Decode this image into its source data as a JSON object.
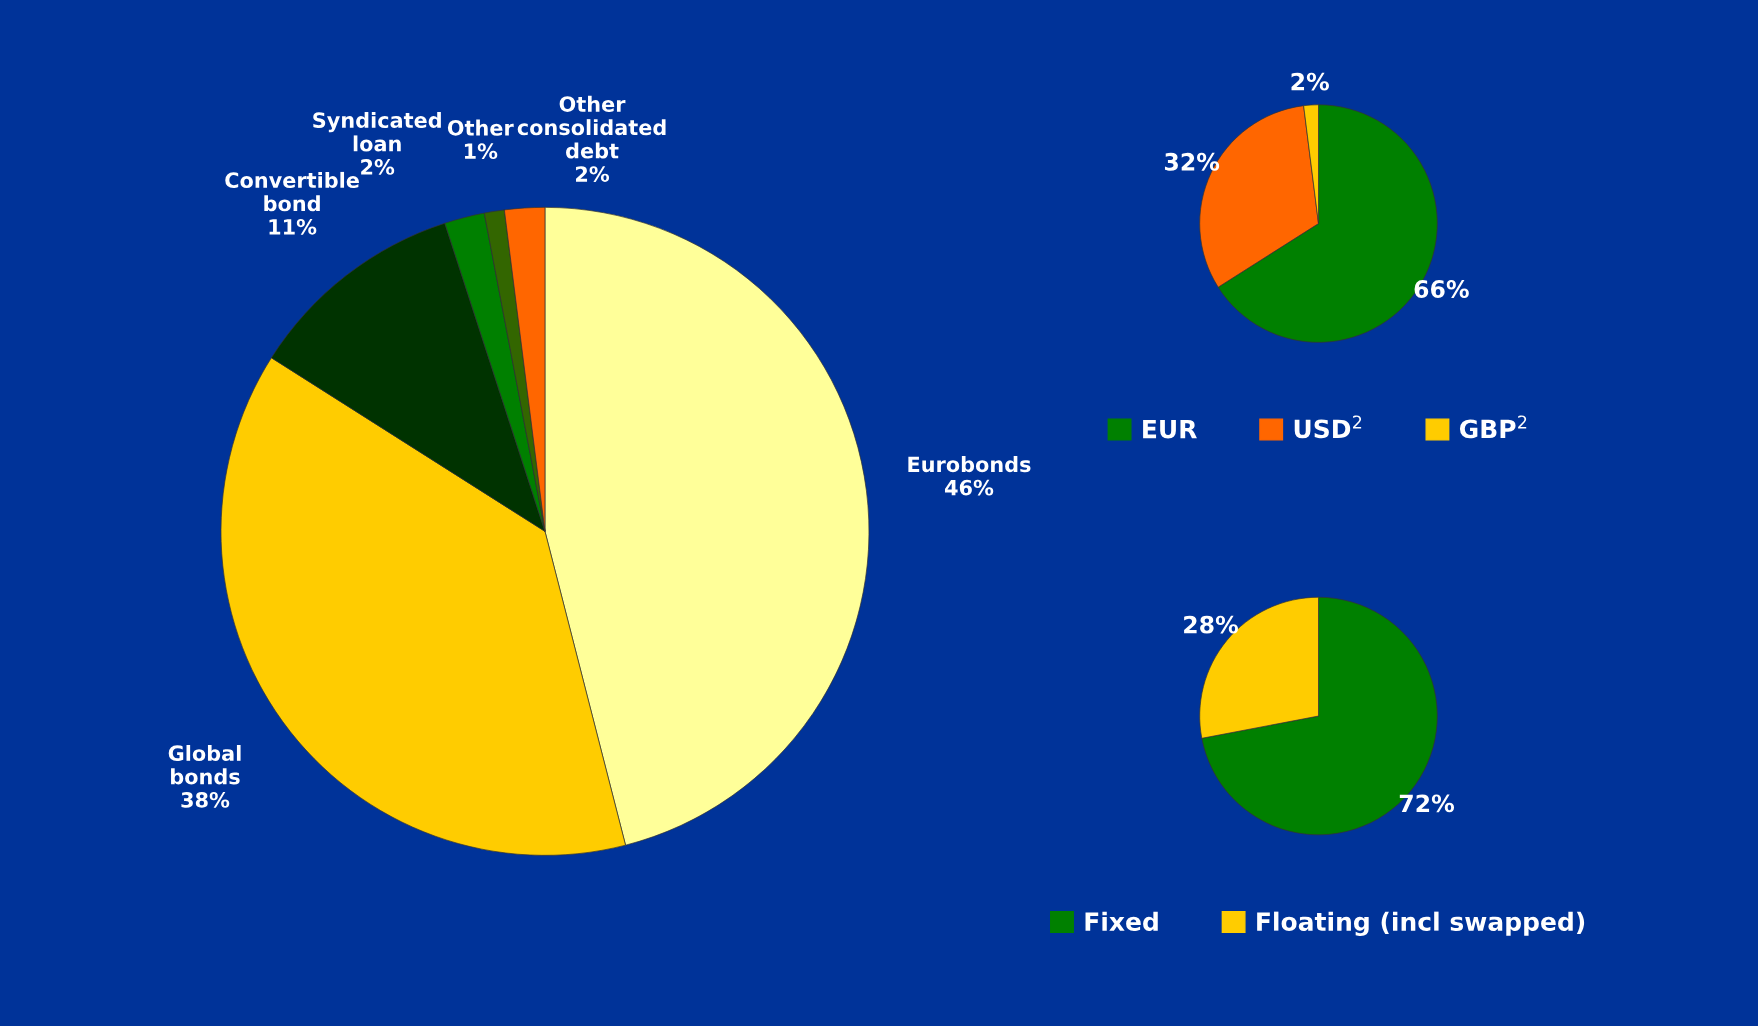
{
  "chart_data": [
    {
      "type": "pie",
      "categories": [
        "Eurobonds",
        "Global bonds",
        "Convertible bond",
        "Syndicated loan",
        "Other",
        "Other consolidated debt"
      ],
      "values": [
        46,
        38,
        11,
        2,
        1,
        2
      ],
      "value_labels": [
        "46%",
        "38%",
        "11%",
        "2%",
        "1%",
        "2%"
      ],
      "colors": [
        "#ffff99",
        "#ffcc00",
        "#003300",
        "#008000",
        "#336600",
        "#ff6600"
      ],
      "legend": false
    },
    {
      "type": "pie",
      "categories": [
        "EUR",
        "USD$^{2}$",
        "GBP$^{2}$"
      ],
      "values": [
        66,
        32,
        2
      ],
      "value_labels": [
        "66%",
        "32%",
        "2%"
      ],
      "colors": [
        "#008000",
        "#ff6600",
        "#ffcc00"
      ],
      "legend": "bottom"
    },
    {
      "type": "pie",
      "categories": [
        "Fixed",
        "Floating (incl swapped)"
      ],
      "values": [
        72,
        28
      ],
      "value_labels": [
        "72%",
        "28%"
      ],
      "colors": [
        "#008000",
        "#ffcc00"
      ],
      "legend": "bottom"
    }
  ]
}
